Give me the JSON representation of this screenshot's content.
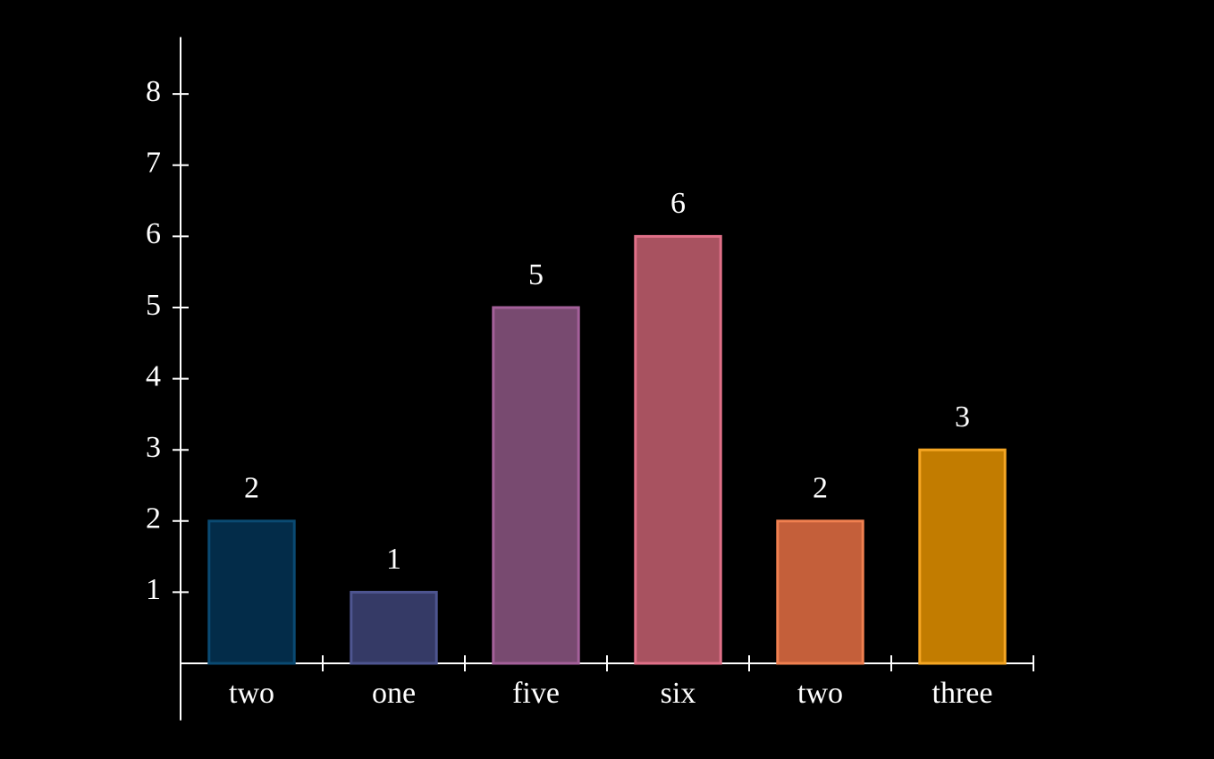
{
  "chart_data": {
    "type": "bar",
    "categories": [
      "two",
      "one",
      "five",
      "six",
      "two",
      "three"
    ],
    "values": [
      2,
      1,
      5,
      6,
      2,
      3
    ],
    "colors": [
      "#032c49",
      "#353a66",
      "#784a70",
      "#a85260",
      "#c45f3a",
      "#c27c00"
    ],
    "edge_colors": [
      "#0a4a72",
      "#4e5590",
      "#a4609a",
      "#e07088",
      "#f08050",
      "#f5a623"
    ],
    "ylim": [
      -0.8,
      8.8
    ],
    "yticks": [
      1,
      2,
      3,
      4,
      5,
      6,
      7,
      8
    ]
  }
}
